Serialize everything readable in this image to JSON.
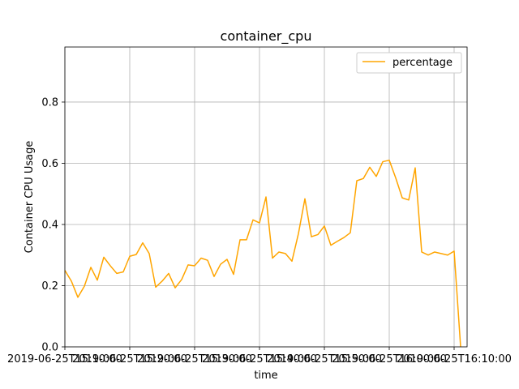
{
  "chart_data": {
    "type": "line",
    "title": "container_cpu",
    "xlabel": "time",
    "ylabel": "Container CPU Usage",
    "ylim": [
      0,
      0.98
    ],
    "y_ticks": [
      0.0,
      0.2,
      0.4,
      0.6,
      0.8
    ],
    "y_tick_labels": [
      "0.0",
      "0.2",
      "0.4",
      "0.6",
      "0.8"
    ],
    "x_tick_labels": [
      "2019-06-25T15:10:00",
      "2019-06-25T15:20:00",
      "2019-06-25T15:30:00",
      "2019-06-25T15:40:00",
      "2019-06-25T15:50:00",
      "2019-06-25T16:00:00",
      "2019-06-25T16:10:00"
    ],
    "grid": true,
    "legend_position": "top-right",
    "series": [
      {
        "name": "percentage",
        "color": "#FFA500",
        "values": [
          0.25,
          0.215,
          0.162,
          0.198,
          0.26,
          0.218,
          0.293,
          0.265,
          0.24,
          0.245,
          0.296,
          0.302,
          0.34,
          0.305,
          0.195,
          0.215,
          0.24,
          0.193,
          0.22,
          0.268,
          0.265,
          0.29,
          0.283,
          0.23,
          0.27,
          0.286,
          0.237,
          0.35,
          0.35,
          0.415,
          0.405,
          0.49,
          0.29,
          0.31,
          0.305,
          0.28,
          0.37,
          0.484,
          0.36,
          0.367,
          0.395,
          0.332,
          0.345,
          0.357,
          0.373,
          0.543,
          0.55,
          0.587,
          0.557,
          0.605,
          0.61,
          0.552,
          0.487,
          0.48,
          0.585,
          0.31,
          0.3,
          0.31,
          0.305,
          0.3,
          0.313,
          0.0
        ]
      }
    ]
  }
}
